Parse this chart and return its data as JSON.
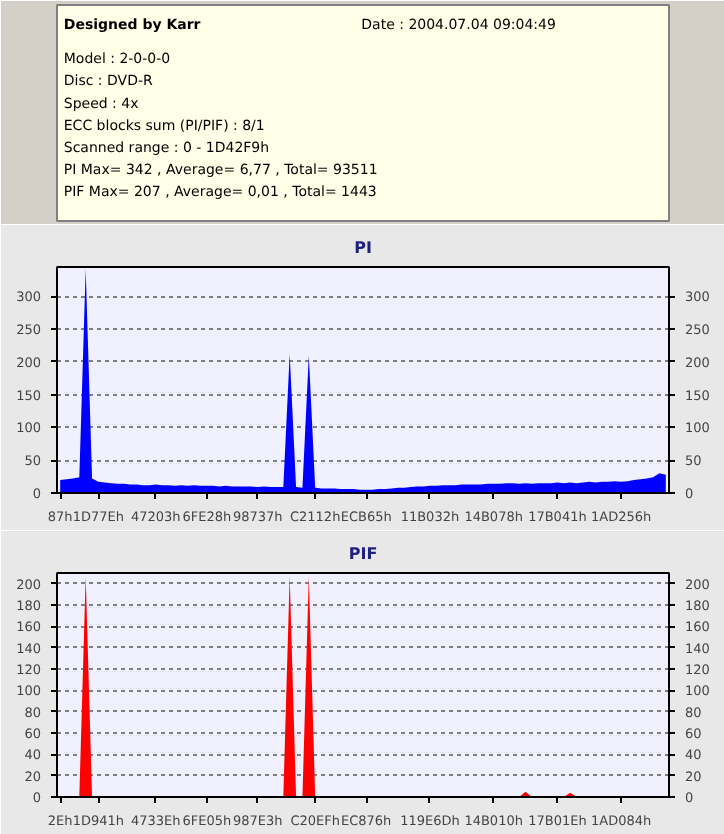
{
  "chart_data": [
    {
      "type": "area",
      "title": "PI",
      "annotations": [
        "Designed by Karr",
        "Date : 2004.07.04 09:04:49",
        "Model : 2-0-0-0",
        "Disc : DVD-R",
        "Speed : 4x",
        "ECC blocks sum (PI/PIF) : 8/1",
        "Scanned range : 0 - 1D42F9h",
        "PI Max= 342 , Average= 6,77 , Total= 93511",
        "PIF Max= 207 , Average= 0,01 , Total= 1443"
      ],
      "categories": [
        "87h",
        null,
        null,
        null,
        null,
        null,
        "1D77Eh",
        null,
        null,
        null,
        null,
        null,
        null,
        null,
        null,
        "47203h",
        null,
        null,
        null,
        null,
        null,
        null,
        null,
        "6FE28h",
        null,
        null,
        null,
        null,
        null,
        null,
        null,
        "98737h",
        null,
        null,
        null,
        null,
        null,
        null,
        null,
        null,
        "C2112h",
        null,
        null,
        null,
        null,
        null,
        null,
        null,
        "ECB65h",
        null,
        null,
        null,
        null,
        null,
        null,
        null,
        null,
        null,
        "11B032h",
        null,
        null,
        null,
        null,
        null,
        null,
        null,
        null,
        null,
        "14B078h",
        null,
        null,
        null,
        null,
        null,
        null,
        null,
        null,
        null,
        "17B041h",
        null,
        null,
        null,
        null,
        null,
        null,
        null,
        null,
        null,
        "1AD256h",
        null,
        null,
        null,
        null,
        null,
        null,
        null
      ],
      "series": [
        {
          "color": "#0000ff",
          "values": [
            20,
            21,
            22,
            24,
            342,
            22,
            17,
            16,
            15,
            14,
            14,
            13,
            13,
            12,
            12,
            13,
            12,
            12,
            11,
            12,
            11,
            12,
            11,
            11,
            11,
            10,
            11,
            10,
            10,
            10,
            10,
            9,
            10,
            9,
            9,
            9,
            212,
            9,
            8,
            210,
            8,
            7,
            7,
            7,
            6,
            6,
            6,
            5,
            5,
            5,
            6,
            6,
            7,
            8,
            8,
            9,
            10,
            10,
            11,
            11,
            12,
            12,
            12,
            13,
            13,
            13,
            13,
            14,
            14,
            14,
            15,
            15,
            14,
            15,
            14,
            15,
            15,
            15,
            16,
            15,
            16,
            15,
            16,
            17,
            16,
            17,
            17,
            18,
            17,
            18,
            20,
            21,
            22,
            24,
            30,
            28
          ]
        }
      ],
      "ylim": [
        0,
        345
      ],
      "yticks": [
        0,
        50,
        100,
        150,
        200,
        250,
        300
      ],
      "y2lim": [
        0,
        345
      ],
      "y2ticks": [
        0,
        50,
        100,
        150,
        200,
        250,
        300
      ],
      "grid": "y"
    },
    {
      "type": "area",
      "title": "PIF",
      "categories": [
        "2Eh",
        null,
        null,
        null,
        null,
        null,
        "1D941h",
        null,
        null,
        null,
        null,
        null,
        null,
        null,
        null,
        "4733Eh",
        null,
        null,
        null,
        null,
        null,
        null,
        null,
        "6FE05h",
        null,
        null,
        null,
        null,
        null,
        null,
        null,
        "987E3h",
        null,
        null,
        null,
        null,
        null,
        null,
        null,
        null,
        "C20EFh",
        null,
        null,
        null,
        null,
        null,
        null,
        null,
        "EC876h",
        null,
        null,
        null,
        null,
        null,
        null,
        null,
        null,
        null,
        "119E6Dh",
        null,
        null,
        null,
        null,
        null,
        null,
        null,
        null,
        null,
        "14B010h",
        null,
        null,
        null,
        null,
        null,
        null,
        null,
        null,
        null,
        "17B01Eh",
        null,
        null,
        null,
        null,
        null,
        null,
        null,
        null,
        null,
        "1AD084h",
        null,
        null,
        null,
        null,
        null,
        null,
        null
      ],
      "series": [
        {
          "color": "#ff0000",
          "values": [
            0,
            0,
            0,
            0,
            207,
            0,
            0,
            0,
            0,
            0,
            0,
            0,
            0,
            0,
            0,
            1,
            0,
            0,
            0,
            0,
            0,
            0,
            0,
            0,
            0,
            0,
            0,
            0,
            0,
            0,
            0,
            0,
            0,
            0,
            0,
            0,
            207,
            0,
            0,
            207,
            0,
            0,
            0,
            0,
            0,
            0,
            0,
            0,
            0,
            0,
            1,
            0,
            0,
            0,
            0,
            0,
            0,
            0,
            0,
            0,
            1,
            0,
            0,
            0,
            0,
            0,
            0,
            0,
            0,
            0,
            0,
            0,
            0,
            5,
            0,
            0,
            0,
            0,
            0,
            0,
            4,
            0,
            0,
            0,
            0,
            0,
            0,
            0,
            0,
            0,
            1,
            0,
            0,
            0,
            0,
            0
          ]
        }
      ],
      "ylim": [
        0,
        210
      ],
      "yticks": [
        0,
        20,
        40,
        60,
        80,
        100,
        120,
        140,
        160,
        180,
        200
      ],
      "y2lim": [
        0,
        210
      ],
      "y2ticks": [
        0,
        20,
        40,
        60,
        80,
        100,
        120,
        140,
        160,
        180,
        200
      ],
      "grid": "y"
    }
  ]
}
